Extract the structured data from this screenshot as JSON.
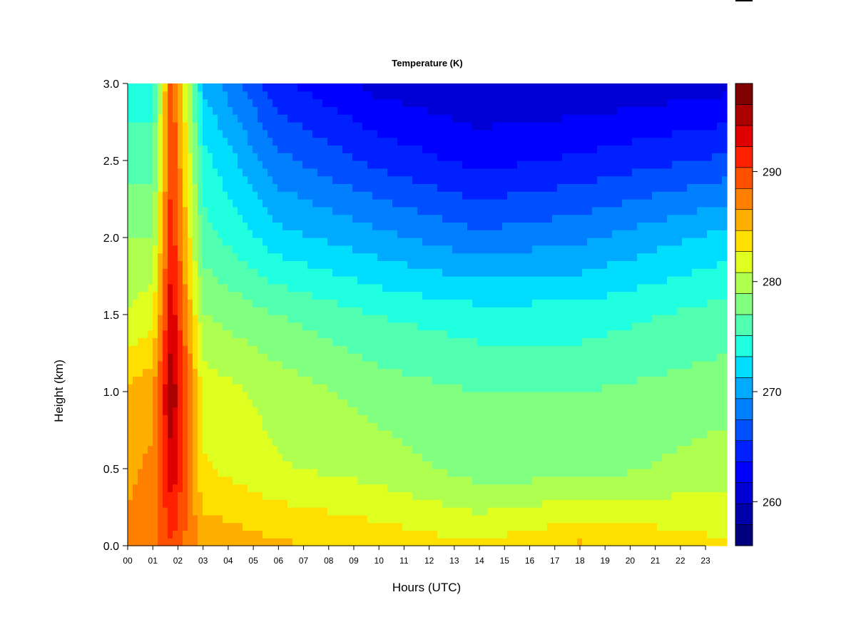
{
  "chart_data": {
    "type": "heatmap",
    "title": "Temperature (K)",
    "xlabel": "Hours (UTC)",
    "ylabel": "Height (km)",
    "xlim": [
      0,
      23.85
    ],
    "ylim": [
      0.0,
      3.0
    ],
    "x_ticks": [
      "00",
      "01",
      "02",
      "03",
      "04",
      "05",
      "06",
      "07",
      "08",
      "09",
      "10",
      "11",
      "12",
      "13",
      "14",
      "15",
      "16",
      "17",
      "18",
      "19",
      "20",
      "21",
      "22",
      "23"
    ],
    "y_ticks": [
      "0.0",
      "0.5",
      "1.0",
      "1.5",
      "2.0",
      "2.5",
      "3.0"
    ],
    "colorbar": {
      "min": 256,
      "max": 298,
      "tick_labels": [
        "260",
        "270",
        "280",
        "290"
      ],
      "tick_values": [
        260,
        270,
        280,
        290
      ],
      "colors": [
        "#00007F",
        "#0000AA",
        "#0000D4",
        "#0000FF",
        "#0020FF",
        "#0050FF",
        "#0080FF",
        "#00AAFF",
        "#00DDFF",
        "#20FFDF",
        "#50FFAF",
        "#80FF80",
        "#AFFF50",
        "#DFFF20",
        "#FFDF00",
        "#FFAF00",
        "#FF8000",
        "#FF5000",
        "#FF2000",
        "#DF0000",
        "#AA0000",
        "#800000"
      ]
    },
    "profiles": [
      {
        "hour": 0.0,
        "heights": [
          0.0,
          0.5,
          1.0,
          1.5,
          2.0,
          2.5,
          3.0
        ],
        "temps": [
          287,
          286,
          285,
          281,
          279,
          276,
          274
        ]
      },
      {
        "hour": 1.0,
        "heights": [
          0.0,
          0.5,
          1.0,
          1.5,
          2.0,
          2.5,
          3.0
        ],
        "temps": [
          288,
          287,
          286,
          282,
          279,
          276,
          274
        ]
      },
      {
        "hour": 1.75,
        "heights": [
          0.0,
          0.5,
          1.0,
          1.5,
          2.0,
          2.5,
          3.0
        ],
        "temps": [
          290,
          294,
          296,
          294,
          292,
          291,
          290
        ]
      },
      {
        "hour": 3.0,
        "heights": [
          0.0,
          0.5,
          1.0,
          1.5,
          2.0,
          2.5,
          3.0
        ],
        "temps": [
          286,
          283,
          282,
          279,
          276,
          274,
          271
        ]
      },
      {
        "hour": 6.0,
        "heights": [
          0.0,
          0.5,
          1.0,
          1.5,
          2.0,
          2.5,
          3.0
        ],
        "temps": [
          285,
          281,
          280,
          277,
          272,
          268,
          264
        ]
      },
      {
        "hour": 10.0,
        "heights": [
          0.0,
          0.5,
          1.0,
          1.5,
          2.0,
          2.5,
          3.0
        ],
        "temps": [
          284,
          280,
          278,
          275,
          270,
          265,
          261
        ]
      },
      {
        "hour": 14.0,
        "heights": [
          0.0,
          0.5,
          1.0,
          1.5,
          2.0,
          2.5,
          3.0
        ],
        "temps": [
          283,
          278,
          277,
          274,
          268,
          263,
          260
        ]
      },
      {
        "hour": 18.0,
        "heights": [
          0.0,
          0.5,
          1.0,
          1.5,
          2.0,
          2.5,
          3.0
        ],
        "temps": [
          285,
          278,
          277,
          274,
          269,
          264,
          260
        ]
      },
      {
        "hour": 23.85,
        "heights": [
          0.0,
          0.5,
          1.0,
          1.5,
          2.0,
          2.5,
          3.0
        ],
        "temps": [
          283,
          280,
          278,
          276,
          272,
          266,
          261
        ]
      }
    ],
    "grid": false,
    "legend": "colorbar-right"
  }
}
